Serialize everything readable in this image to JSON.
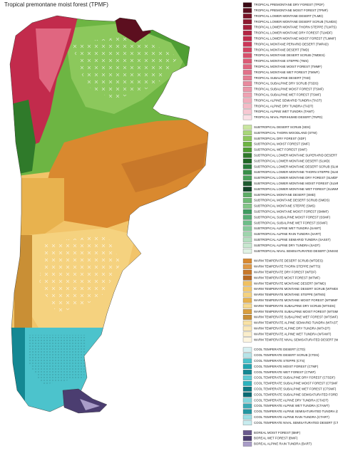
{
  "title": "Tropical premontane moist forest (TPMF)",
  "legend": {
    "groups": [
      {
        "items": [
          {
            "label": "TROPICAL PREMONTANE DRY FOREST (TPDF)",
            "color": "#3a0a14"
          },
          {
            "label": "TROPICAL PREMONTANE MOIST FOREST (TPMF)",
            "color": "#5c0f1f"
          },
          {
            "label": "TROPICAL LOWER MONTANE DESERT (TLMD)",
            "color": "#7a1428"
          },
          {
            "label": "TROPICAL LOWER MONTANE DESERT SCRUB (TLMDS)",
            "color": "#8e1a30"
          },
          {
            "label": "TROPICAL LOWER MONTANE THORN STEPPE (TLMTS)",
            "color": "#a51f3b"
          },
          {
            "label": "TROPICAL LOWER MONTANE DRY FOREST (TLMDF)",
            "color": "#b52544"
          },
          {
            "label": "TROPICAL LOWER MONTANE MOIST FOREST (TLMMF)",
            "color": "#c22b4c"
          },
          {
            "label": "TROPICAL MONTANE PERIARID DESERT (TMPAD)",
            "color": "#cc3658"
          },
          {
            "label": "TROPICAL MONTANE DESERT (TMD)",
            "color": "#d24462"
          },
          {
            "label": "TROPICAL MONTANE DESERT SCRUB (TMDES)",
            "color": "#d8506c"
          },
          {
            "label": "TROPICAL MONTANE STEPPE (TMS)",
            "color": "#dc5b76"
          },
          {
            "label": "TROPICAL MONTANE MOIST FOREST (TMMF)",
            "color": "#e06680"
          },
          {
            "label": "TROPICAL MONTANE WET FOREST (TMWF)",
            "color": "#e3728a"
          },
          {
            "label": "TROPICAL SUBALPINE DESERT (TSD)",
            "color": "#e67e94"
          },
          {
            "label": "TROPICAL SUBALPINE DRY SCRUB (TSDS)",
            "color": "#e98a9e"
          },
          {
            "label": "TROPICAL SUBALPINE MOIST FOREST (TSMF)",
            "color": "#ec96a8"
          },
          {
            "label": "TROPICAL SUBALPINE WET FOREST (TSWF)",
            "color": "#efa2b2"
          },
          {
            "label": "TROPICAL ALPINE SEMIARID TUNDRA (TAST)",
            "color": "#f2aebc"
          },
          {
            "label": "TROPICAL ALPINE DRY TUNDRA (TADT)",
            "color": "#f4bac6"
          },
          {
            "label": "TROPICAL ALPINE WET TUNDRA (TAWT)",
            "color": "#f7c8d2"
          },
          {
            "label": "TROPICAL NIVAL PERIHUMID DESERT (TNPD)",
            "color": "#fbe0e6"
          }
        ]
      },
      {
        "items": [
          {
            "label": "SUBTROPICAL DESERT SCRUB (SDS)",
            "color": "#c9e6a0"
          },
          {
            "label": "SUBTROPICAL THORN WOODLAND (STW)",
            "color": "#a9d77a"
          },
          {
            "label": "SUBTROPICAL DRY FOREST (SDF)",
            "color": "#8cc85c"
          },
          {
            "label": "SUBTROPICAL MOIST FOREST (SMF)",
            "color": "#6db543"
          },
          {
            "label": "SUBTROPICAL WET FOREST (SWF)",
            "color": "#4f9e34"
          },
          {
            "label": "SUBTROPICAL LOWER MONTANE SUPERARID DESERT (SLMSAD)",
            "color": "#2f7a2a"
          },
          {
            "label": "SUBTROPICAL LOWER MONTANE DESERT (SLMD)",
            "color": "#1f6624"
          },
          {
            "label": "SUBTROPICAL LOWER MONTANE DESERT SCRUB (SLMDS)",
            "color": "#2a7d3b"
          },
          {
            "label": "SUBTROPICAL LOWER MONTANE THORN STEPPE (SLMTS)",
            "color": "#3a8f4a"
          },
          {
            "label": "SUBTROPICAL LOWER MONTANE DRY FOREST (SLMDF)",
            "color": "#4aa05a"
          },
          {
            "label": "SUBTROPICAL LOWER MONTANE MOIST FOREST (SLMMF)",
            "color": "#1d5a2e"
          },
          {
            "label": "SUBTROPICAL LOWER MONTANE WET FOREST (SLMWF)",
            "color": "#14472a"
          },
          {
            "label": "SUBTROPICAL MONTANE DESERT (SMD)",
            "color": "#5dae66"
          },
          {
            "label": "SUBTROPICAL MONTANE DESERT SCRUB (SMDS)",
            "color": "#6fbb75"
          },
          {
            "label": "SUBTROPICAL MONTANE STEPPE (SMS)",
            "color": "#82c687"
          },
          {
            "label": "SUBTROPICAL MONTANE MOIST FOREST (SMMF)",
            "color": "#3f9b60"
          },
          {
            "label": "SUBTROPICAL SUBALPINE MOIST FOREST (SSMF)",
            "color": "#56ad74"
          },
          {
            "label": "SUBTROPICAL SUBALPINE WET FOREST (SSWF)",
            "color": "#6dbd88"
          },
          {
            "label": "SUBTROPICAL ALPINE WET TUNDRA (SAWT)",
            "color": "#86c99a"
          },
          {
            "label": "SUBTROPICAL ALPINE RAIN TUNDRA (SART)",
            "color": "#9fd5ad"
          },
          {
            "label": "SUBTROPICAL ALPINE SEMIARID TUNDRA (SASST)",
            "color": "#b5dfc0"
          },
          {
            "label": "SUBTROPICAL ALPINE DRY TUNDRA (SADT)",
            "color": "#c8e8d0"
          },
          {
            "label": "SUBTROPICAL NIVAL SEMISATURATED DESERT (SNSSD)",
            "color": "#e0f2e4"
          }
        ]
      },
      {
        "items": [
          {
            "label": "WARM TEMPERATE DESERT SCRUB (WTDES)",
            "color": "#d9892f"
          },
          {
            "label": "WARM TEMPERATE THORN STEPPE (WTTS)",
            "color": "#e19a45"
          },
          {
            "label": "WARM TEMPERATE DRY FOREST (WTDF)",
            "color": "#c8782a"
          },
          {
            "label": "WARM TEMPERATE MOIST FOREST (WTMF)",
            "color": "#b86a24"
          },
          {
            "label": "WARM TEMPERATE MONTANE DESERT (WTMD)",
            "color": "#f0c060"
          },
          {
            "label": "WARM TEMPERATE MONTANE DESERT SCRUB (WTMDS)",
            "color": "#f3c96f"
          },
          {
            "label": "WARM TEMPERATE MONTANE STEPPE (WTMS)",
            "color": "#f5d27f"
          },
          {
            "label": "WARM TEMPERATE MONTANE MOIST FOREST (WTMMF)",
            "color": "#e8b24e"
          },
          {
            "label": "WARM TEMPERATE SUBALPINE DRY SCRUB (WTSDS)",
            "color": "#f7da90"
          },
          {
            "label": "WARM TEMPERATE SUBALPINE MOIST FOREST (WTSMF)",
            "color": "#d99e3e"
          },
          {
            "label": "WARM TEMPERATE SUBALPINE WET FOREST (WTSWF)",
            "color": "#c98f35"
          },
          {
            "label": "WARM TEMPERATE ALPINE SEMIARID TUNDRA (WTAST)",
            "color": "#f9e2a5"
          },
          {
            "label": "WARM TEMPERATE ALPINE DRY TUNDRA (WTADT)",
            "color": "#fae8b8"
          },
          {
            "label": "WARM TEMPERATE ALPINE WET TUNDRA (WTAWT)",
            "color": "#fbeecb"
          },
          {
            "label": "WARM TEMPERATE NIVAL SEMISATURATED DESERT (WTNSSD)",
            "color": "#fdf5e0"
          }
        ]
      },
      {
        "items": [
          {
            "label": "COOL TEMPERATE DESERT (CTD)",
            "color": "#d6f0f2"
          },
          {
            "label": "COOL TEMPERATE DESERT SCRUB (CTDS)",
            "color": "#b6e4e8"
          },
          {
            "label": "COOL TEMPERATE STEPPE (CTS)",
            "color": "#4cc3cc"
          },
          {
            "label": "COOL TEMPERATE MOIST FOREST (CTMF)",
            "color": "#1fa5b0"
          },
          {
            "label": "COOL TEMPERATE WET FOREST (CTWF)",
            "color": "#148893"
          },
          {
            "label": "COOL TEMPERATE SUBALPINE DRY FOREST (CTSDF)",
            "color": "#5fcbd3"
          },
          {
            "label": "COOL TEMPERATE SUBALPINE MOIST FOREST (CTSMF)",
            "color": "#2bb3be"
          },
          {
            "label": "COOL TEMPERATE SUBALPINE WET FOREST (CTSWF)",
            "color": "#0f7a84"
          },
          {
            "label": "COOL TEMPERATE SUBALPINE SEMISATURATED FOREST (CTSSF)",
            "color": "#0a6a73"
          },
          {
            "label": "COOL TEMPERATE ALPINE DRY TUNDRA (CTADT)",
            "color": "#82d6dc"
          },
          {
            "label": "COOL TEMPERATE ALPINE WET TUNDRA (CTAWT)",
            "color": "#3aa9b4"
          },
          {
            "label": "COOL TEMPERATE ALPINE SEMISATURATED TUNDRA (CTASST)",
            "color": "#2396a1"
          },
          {
            "label": "COOL TEMPERATE ALPINE RAIN TUNDRA (CTART)",
            "color": "#9cdfe4"
          },
          {
            "label": "COOL TEMPERATE NIVAL SEMISATURATED DESERT (CTNSSD)",
            "color": "#c8ecef"
          }
        ]
      },
      {
        "items": [
          {
            "label": "BOREAL MOIST FOREST (BMF)",
            "color": "#6a5a8e"
          },
          {
            "label": "BOREAL WET FOREST (BWF)",
            "color": "#4b3d70"
          },
          {
            "label": "BOREAL ALPINE RAIN TUNDRA (BART)",
            "color": "#a99cc8"
          }
        ]
      }
    ]
  }
}
